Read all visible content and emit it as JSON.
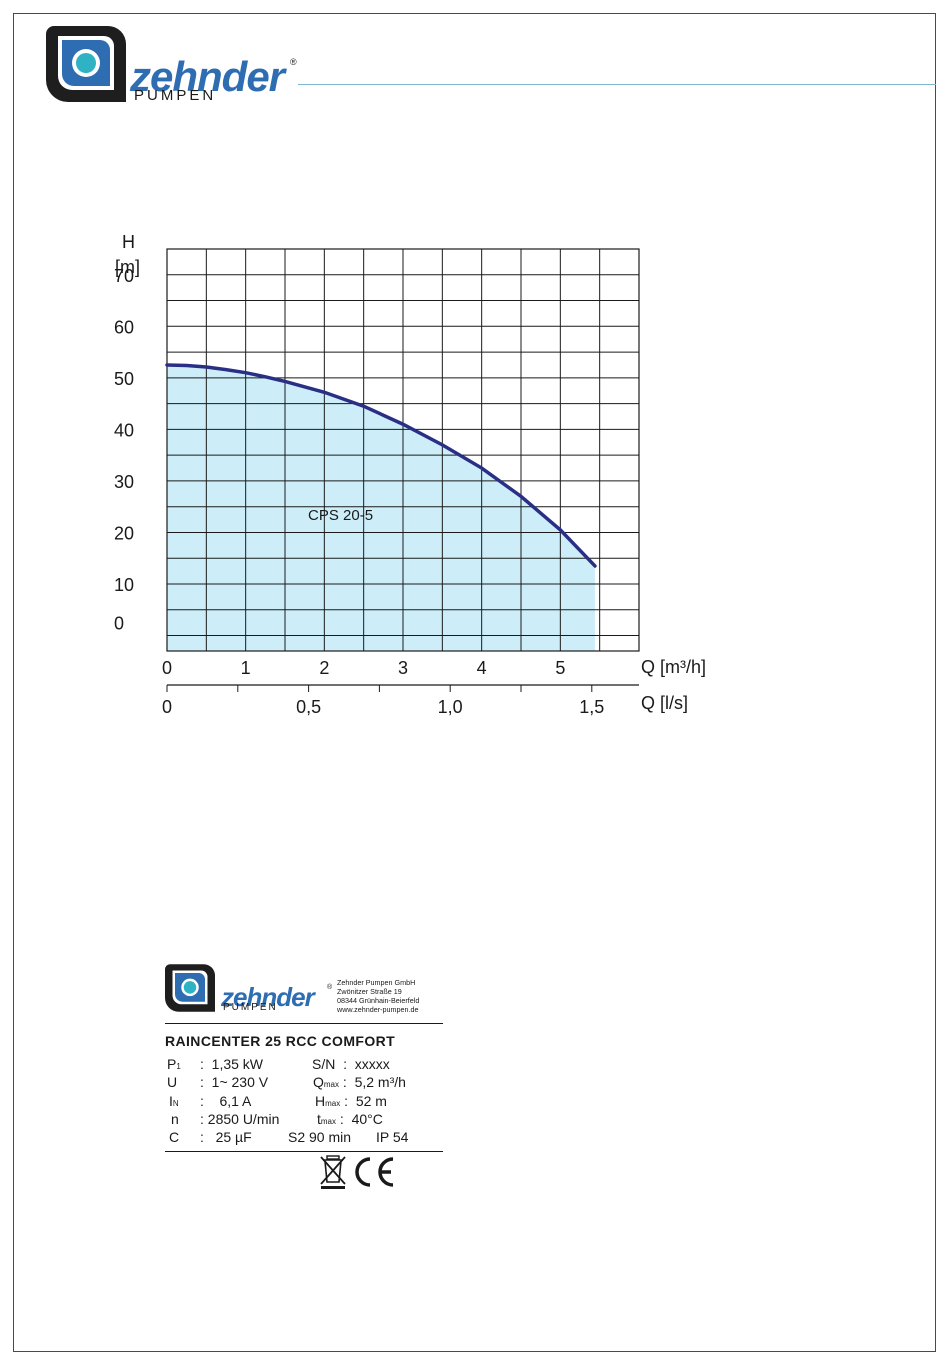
{
  "brand": {
    "name": "zehnder",
    "sub": "PUMPEN",
    "reg": "®",
    "colors": {
      "blue": "#2f6db3",
      "teal": "#2fb3c4",
      "dark": "#1e1e1e"
    }
  },
  "chart_data": {
    "type": "area",
    "title": "",
    "ylabel_symbol": "H",
    "ylabel_unit": "[m]",
    "xlabel": "Q [m³/h]",
    "xlabel2": "Q [l/s]",
    "ylim": [
      -3,
      75
    ],
    "xlim": [
      0,
      6
    ],
    "y_ticks": [
      0,
      10,
      20,
      30,
      40,
      50,
      60,
      70
    ],
    "y_tick_labels": [
      "0",
      "10",
      "20",
      "30",
      "40",
      "50",
      "60",
      "70"
    ],
    "x_ticks": [
      0,
      1,
      2,
      3,
      4,
      5
    ],
    "x_tick_labels": [
      "0",
      "1",
      "2",
      "3",
      "4",
      "5"
    ],
    "x2_ticks": [
      0,
      0.5,
      1.0,
      1.5
    ],
    "x2_tick_labels": [
      "0",
      "0,5",
      "1,0",
      "1,5"
    ],
    "grid": true,
    "series": [
      {
        "name": "CPS 20-5",
        "color": "#2a2f86",
        "fill": "#cdeef9",
        "x": [
          0,
          0.25,
          0.5,
          0.75,
          1.0,
          1.25,
          1.5,
          2.0,
          2.5,
          3.0,
          3.5,
          4.0,
          4.5,
          5.0,
          5.44
        ],
        "y": [
          52.5,
          52.4,
          52.1,
          51.6,
          51.0,
          50.2,
          49.3,
          47.2,
          44.5,
          41.0,
          37.0,
          32.5,
          27.0,
          20.5,
          13.5
        ]
      }
    ]
  },
  "nameplate": {
    "company": [
      "Zehnder Pumpen GmbH",
      "Zwönitzer Straße 19",
      "08344 Grünhain-Beierfeld",
      "www.zehnder-pumpen.de"
    ],
    "model": "RAINCENTER 25 RCC COMFORT",
    "left_specs": [
      {
        "sym": "P",
        "sub": "1",
        "value": "1,35 kW"
      },
      {
        "sym": "U",
        "sub": "",
        "value": "1~ 230 V"
      },
      {
        "sym": "I",
        "sub": "N",
        "value": "6,1 A"
      },
      {
        "sym": "n",
        "sub": "",
        "value": "2850 U/min"
      },
      {
        "sym": "C",
        "sub": "",
        "value": "25 µF"
      }
    ],
    "right_specs": [
      {
        "sym": "S/N",
        "sub": "",
        "value": "xxxxx"
      },
      {
        "sym": "Q",
        "sub": "max",
        "value": "5,2 m³/h"
      },
      {
        "sym": "H",
        "sub": "max",
        "value": "52 m"
      },
      {
        "sym": "t",
        "sub": "max",
        "value": "40°C"
      }
    ],
    "duty": "S2 90 min",
    "ip": "IP 54",
    "ce": "CE"
  }
}
